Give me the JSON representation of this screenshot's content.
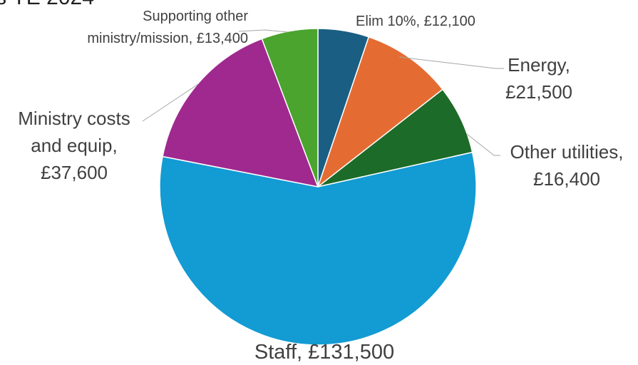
{
  "title_fragment": "s YE 2024",
  "chart_data": {
    "type": "pie",
    "title": "s YE 2024",
    "legend": "none",
    "slices": [
      {
        "label": "Elim 10%",
        "value": 12100,
        "display": "£12,100",
        "color": "#1b5e83"
      },
      {
        "label": "Energy",
        "value": 21500,
        "display": "£21,500",
        "color": "#e46c33"
      },
      {
        "label": "Other utilities",
        "value": 16400,
        "display": "£16,400",
        "color": "#1d6b28"
      },
      {
        "label": "Staff",
        "value": 131500,
        "display": "£131,500",
        "color": "#139bd3"
      },
      {
        "label": "Ministry costs and equip",
        "value": 37600,
        "display": "£37,600",
        "color": "#a0298f"
      },
      {
        "label": "Supporting other ministry/mission",
        "value": 13400,
        "display": "£13,400",
        "color": "#4aa42e"
      }
    ],
    "label_lines": {
      "elim": [
        "Elim 10%,  £12,100"
      ],
      "energy": [
        "Energy,",
        "£21,500"
      ],
      "other_utilities": [
        "Other utilities,",
        "£16,400"
      ],
      "staff": [
        "Staff,  £131,500"
      ],
      "ministry": [
        "Ministry costs",
        "and equip,",
        "£37,600"
      ],
      "supporting": [
        "Supporting other",
        "ministry/mission,  £13,400"
      ]
    }
  }
}
